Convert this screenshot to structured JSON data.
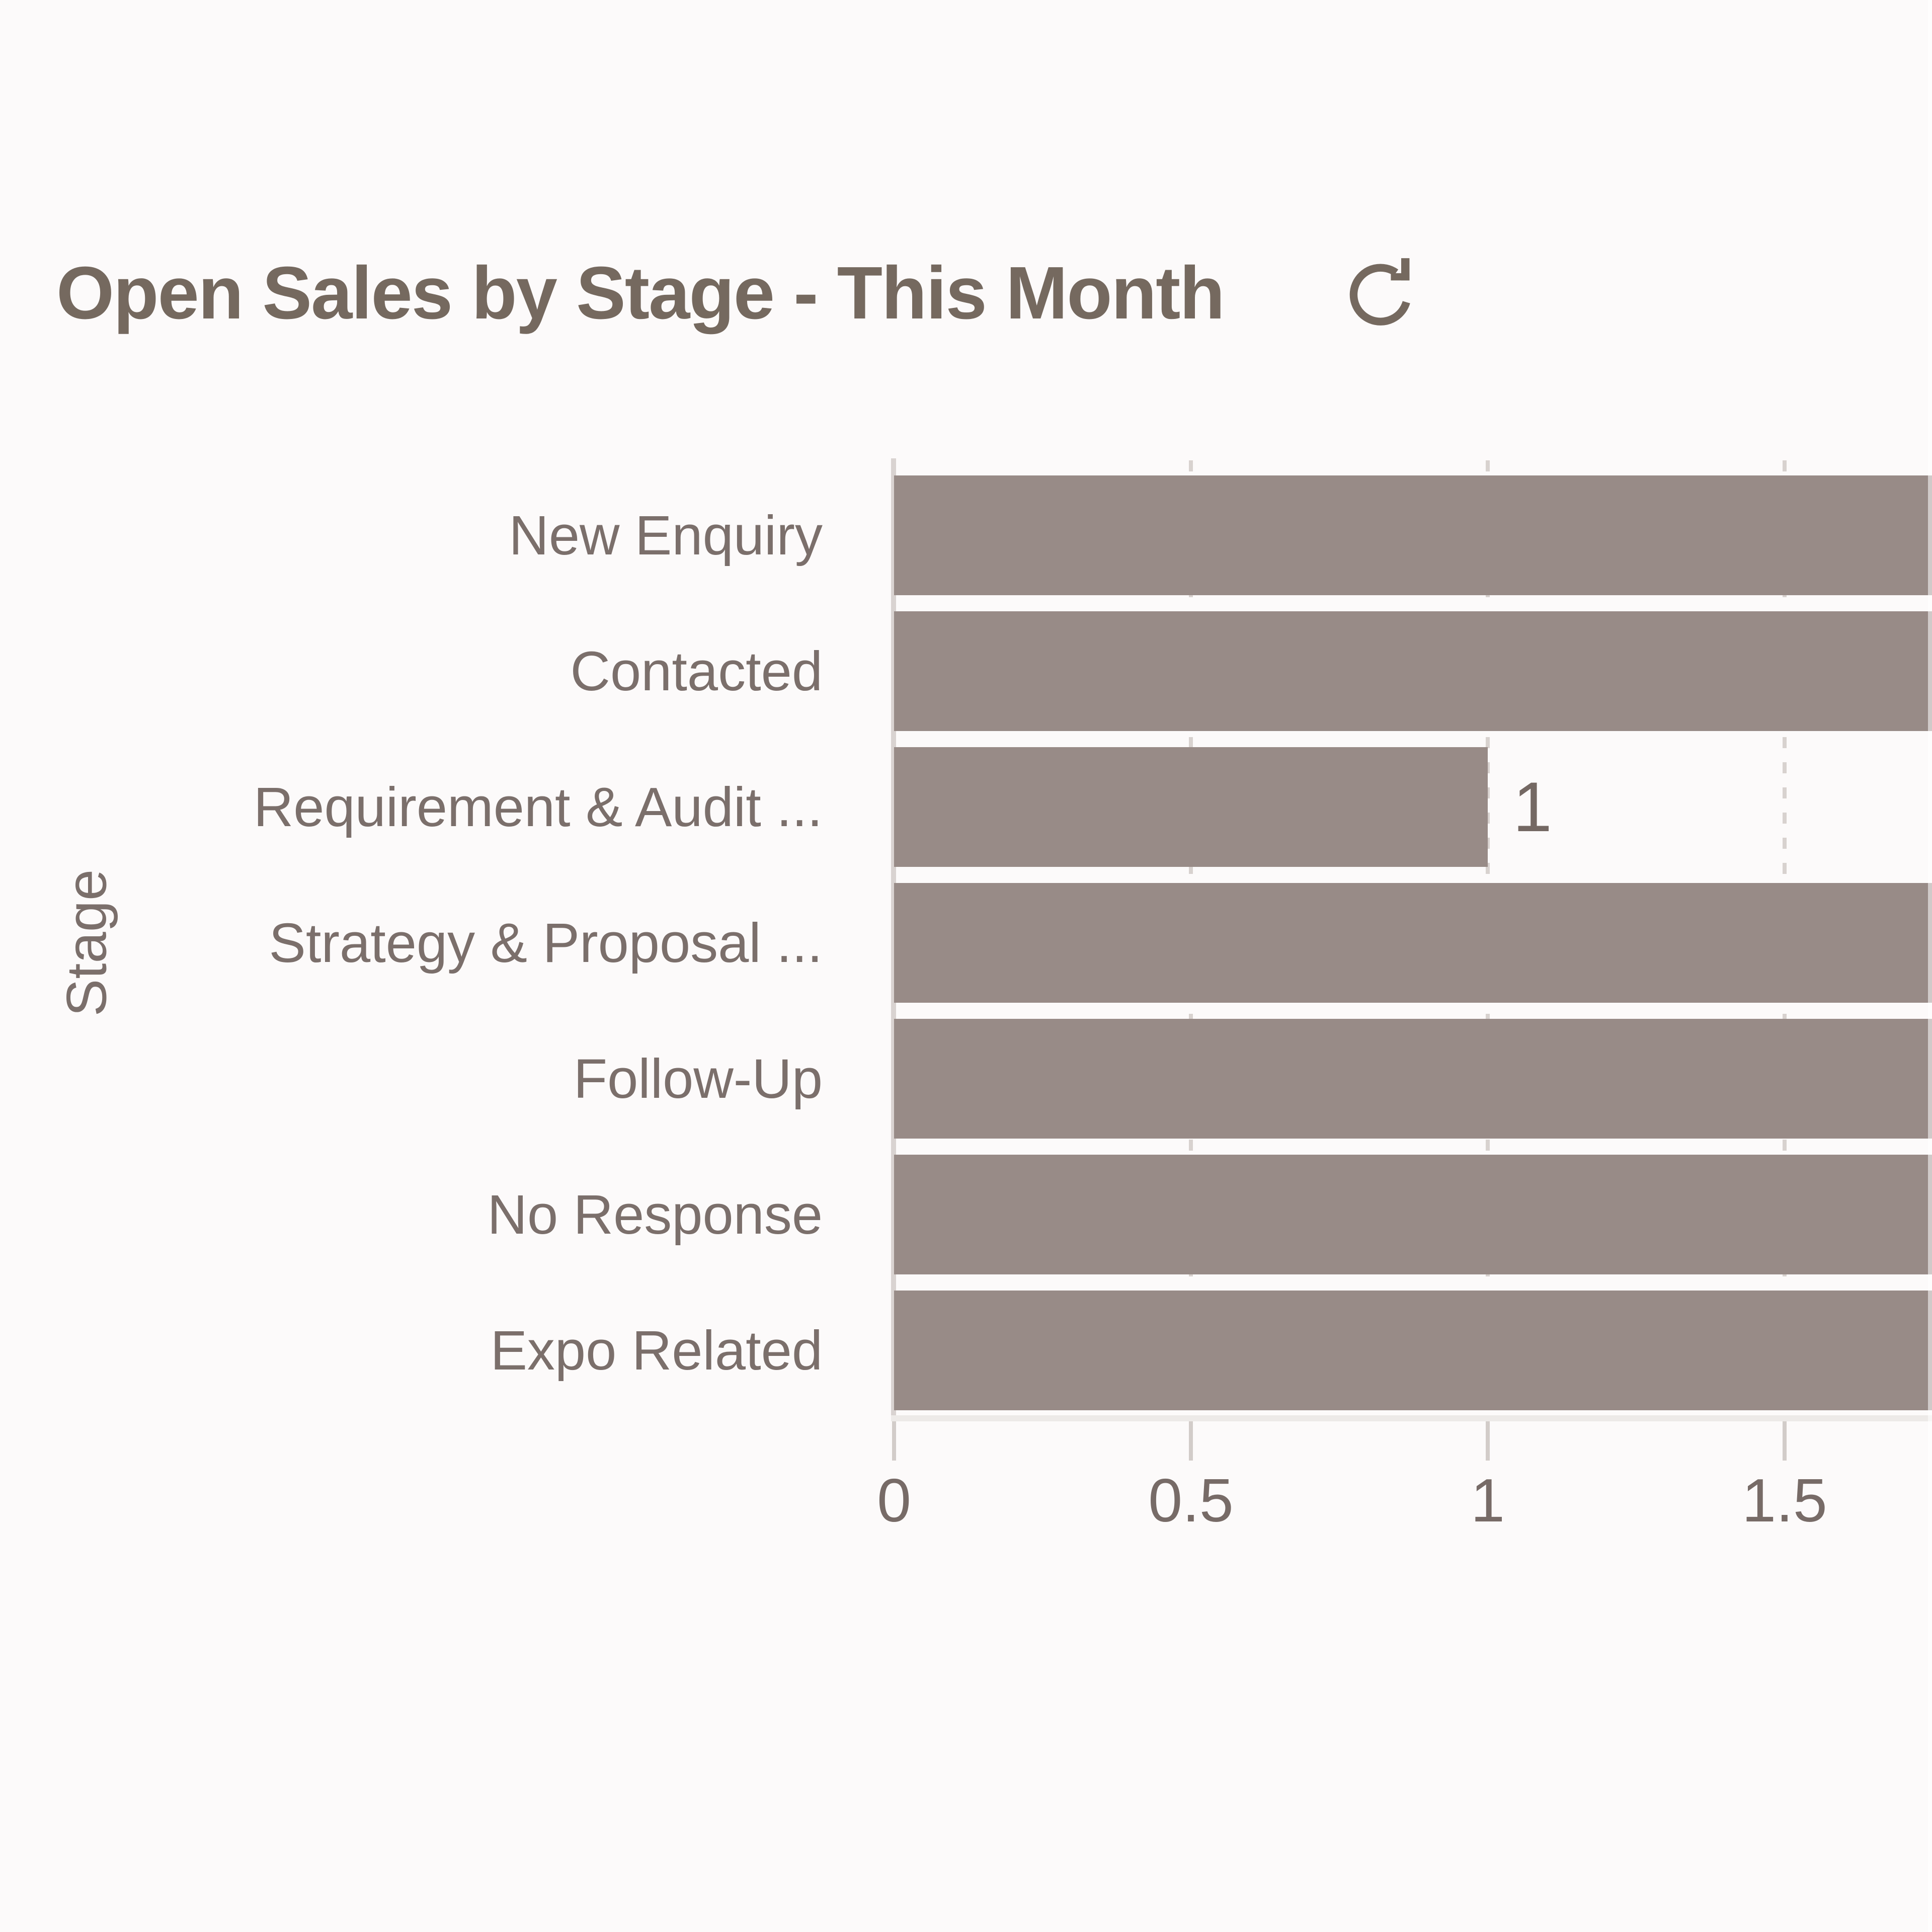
{
  "header": {
    "title": "Open Sales by Stage - This Month",
    "refresh_icon": "refresh-icon"
  },
  "colors": {
    "bar": "#988b87",
    "title_text": "#75695f",
    "label_text": "#7b6f6b",
    "tick_text": "#776b67",
    "axis_line": "#d9d3d1",
    "gridline": "#d8d2cf",
    "background": "#fcfafa"
  },
  "chart_data": {
    "type": "bar",
    "orientation": "horizontal",
    "title": "Open Sales by Stage - This Month",
    "xlabel": "",
    "ylabel": "Stage",
    "categories": [
      "New Enquiry",
      "Contacted",
      "Requirement & Audit ...",
      "Strategy & Proposal ...",
      "Follow-Up",
      "No Response",
      "Expo Related"
    ],
    "values": [
      2,
      2,
      1,
      2,
      2,
      2,
      2
    ],
    "visible_value_labels": [
      "",
      "",
      "1",
      "",
      "",
      "",
      ""
    ],
    "x_ticks": [
      0,
      0.5,
      1,
      1.5
    ],
    "x_tick_labels": [
      "0",
      "0.5",
      "1",
      "1.5"
    ],
    "xlim": [
      0,
      2
    ],
    "visible_xmax": 1.74,
    "bars_clipped_at_right_edge": true,
    "grid": "vertical-dashed-at-ticks",
    "legend": "none"
  }
}
